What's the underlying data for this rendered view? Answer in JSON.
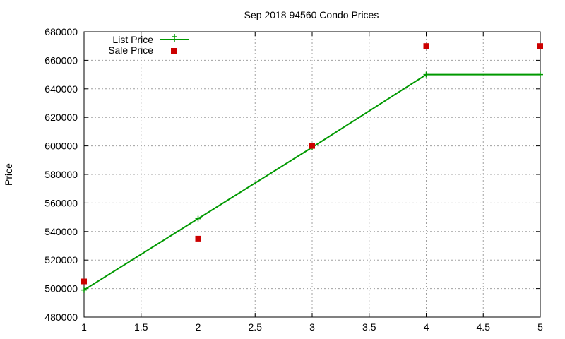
{
  "chart_data": {
    "type": "line",
    "title": "Sep 2018 94560 Condo Prices",
    "xlabel": "",
    "ylabel": "Price",
    "xlim": [
      1,
      5
    ],
    "ylim": [
      480000,
      680000
    ],
    "xticks": [
      "1",
      "1.5",
      "2",
      "2.5",
      "3",
      "3.5",
      "4",
      "4.5",
      "5"
    ],
    "yticks": [
      "480000",
      "500000",
      "520000",
      "540000",
      "560000",
      "580000",
      "600000",
      "620000",
      "640000",
      "660000",
      "680000"
    ],
    "grid": true,
    "legend_position": "top-left",
    "series": [
      {
        "name": "List Price",
        "style": "line-with-plus-markers",
        "color": "#009900",
        "x": [
          1,
          2,
          3,
          4,
          5
        ],
        "y": [
          499000,
          549000,
          599000,
          650000,
          650000
        ]
      },
      {
        "name": "Sale Price",
        "style": "square-markers",
        "color": "#cc0000",
        "x": [
          1,
          2,
          3,
          4,
          5
        ],
        "y": [
          505000,
          535000,
          600000,
          670000,
          670000
        ]
      }
    ]
  }
}
